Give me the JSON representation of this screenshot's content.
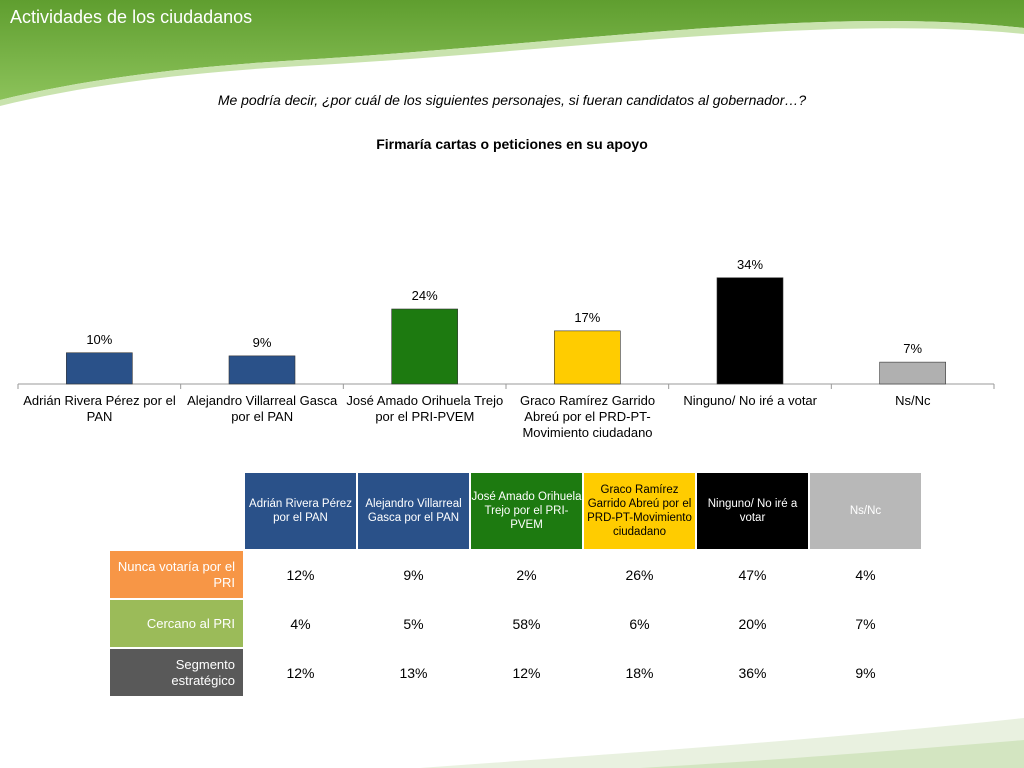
{
  "header": {
    "title": "Actividades de los ciudadanos",
    "band_color": "#6aa83a"
  },
  "question": "Me podría decir, ¿por cuál de los siguientes personajes, si fueran candidatos al gobernador…?",
  "chart_data": [
    {
      "type": "bar",
      "title": "Firmaría cartas o peticiones en su apoyo",
      "categories": [
        "Adrián Rivera Pérez por el PAN",
        "Alejandro Villarreal Gasca por el PAN",
        "José Amado Orihuela Trejo por el PRI-PVEM",
        "Graco Ramírez Garrido Abreú por el PRD-PT-Movimiento ciudadano",
        "Ninguno/ No iré a votar",
        "Ns/Nc"
      ],
      "values": [
        10,
        9,
        24,
        17,
        34,
        7
      ],
      "value_labels": [
        "10%",
        "9%",
        "24%",
        "17%",
        "34%",
        "7%"
      ],
      "colors": [
        "#2a5189",
        "#2a5189",
        "#1d7a10",
        "#ffcc00",
        "#000000",
        "#b0b0b0"
      ],
      "ylim": [
        0,
        40
      ],
      "xlabel": "",
      "ylabel": "",
      "grid": false
    },
    {
      "type": "table",
      "columns": [
        "Adrián Rivera Pérez por el PAN",
        "Alejandro Villarreal Gasca por el PAN",
        "José Amado Orihuela Trejo por el PRI-PVEM",
        "Graco Ramírez Garrido Abreú por el PRD-PT-Movimiento ciudadano",
        "Ninguno/ No iré a votar",
        "Ns/Nc"
      ],
      "column_colors": [
        "#2a5189",
        "#2a5189",
        "#1d7a10",
        "#ffcc00",
        "#000000",
        "#b8b8b8"
      ],
      "column_text_colors": [
        "#ffffff",
        "#ffffff",
        "#ffffff",
        "#000000",
        "#ffffff",
        "#ffffff"
      ],
      "rows": [
        {
          "label": "Nunca votaría por el PRI",
          "color": "#f79646",
          "values": [
            "12%",
            "9%",
            "2%",
            "26%",
            "47%",
            "4%"
          ]
        },
        {
          "label": "Cercano al PRI",
          "color": "#9bbb59",
          "values": [
            "4%",
            "5%",
            "58%",
            "6%",
            "20%",
            "7%"
          ]
        },
        {
          "label": "Segmento estratégico",
          "color": "#595959",
          "values": [
            "12%",
            "13%",
            "12%",
            "18%",
            "36%",
            "9%"
          ]
        }
      ]
    }
  ]
}
